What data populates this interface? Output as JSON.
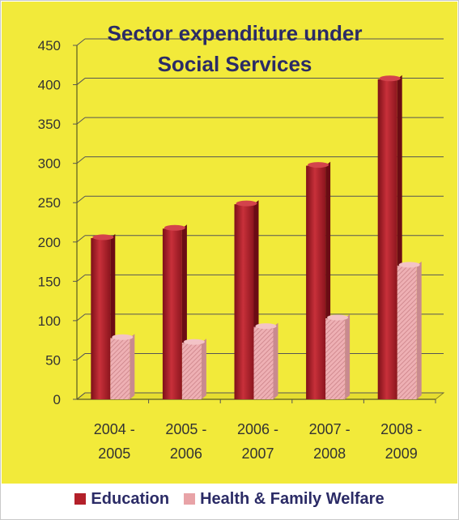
{
  "colors": {
    "plot_background": "#f2ea3a",
    "education": "#b3202a",
    "health": "#e8a3a7",
    "text": "#2b2b66"
  },
  "chart_data": {
    "type": "bar",
    "title_line1": "Sector expenditure under",
    "title_line2": "Social Services",
    "categories": [
      [
        "2004 -",
        "2005"
      ],
      [
        "2005 -",
        "2006"
      ],
      [
        "2006 -",
        "2007"
      ],
      [
        "2007 -",
        "2008"
      ],
      [
        "2008 -",
        "2009"
      ]
    ],
    "series": [
      {
        "name": "Education",
        "values": [
          205,
          217,
          248,
          297,
          407
        ]
      },
      {
        "name": "Health & Family Welfare",
        "values": [
          78,
          72,
          92,
          103,
          170
        ]
      }
    ],
    "ylim": [
      0,
      450
    ],
    "yticks": [
      0,
      50,
      100,
      150,
      200,
      250,
      300,
      350,
      400,
      450
    ],
    "grid": true,
    "legend_position": "bottom"
  }
}
